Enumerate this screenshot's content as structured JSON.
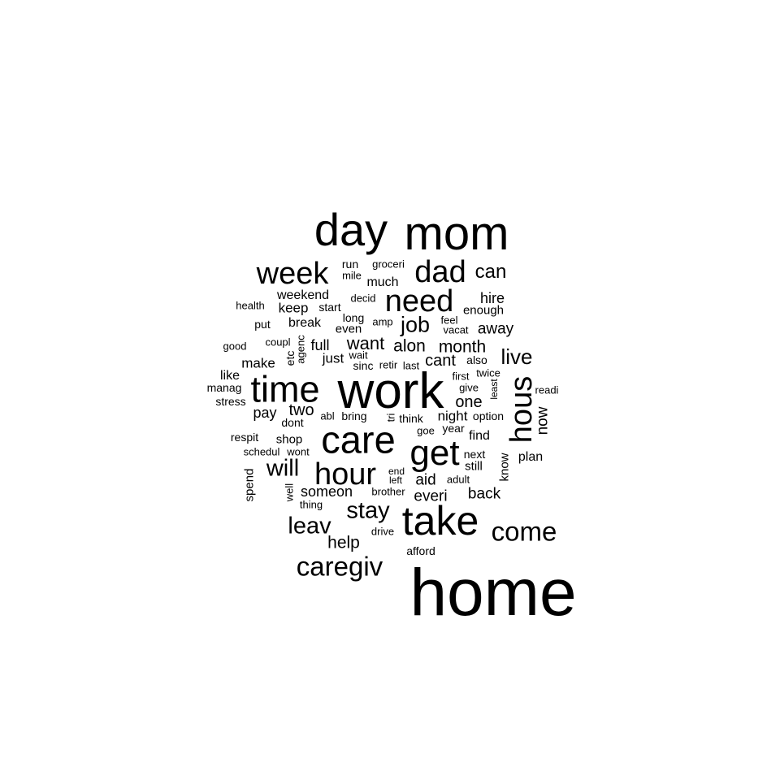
{
  "words": [
    {
      "id": "home",
      "text": "home"
    },
    {
      "id": "work",
      "text": "work"
    },
    {
      "id": "mom",
      "text": "mom"
    },
    {
      "id": "day",
      "text": "day"
    },
    {
      "id": "take",
      "text": "take"
    },
    {
      "id": "care",
      "text": "care"
    },
    {
      "id": "time",
      "text": "time"
    },
    {
      "id": "get",
      "text": "get"
    },
    {
      "id": "hour",
      "text": "hour"
    },
    {
      "id": "week",
      "text": "week"
    },
    {
      "id": "need",
      "text": "need"
    },
    {
      "id": "dad",
      "text": "dad"
    },
    {
      "id": "hous",
      "text": "hous"
    },
    {
      "id": "caregiv",
      "text": "caregiv"
    },
    {
      "id": "come",
      "text": "come"
    },
    {
      "id": "stay",
      "text": "stay"
    },
    {
      "id": "leav",
      "text": "leav"
    },
    {
      "id": "will",
      "text": "will"
    },
    {
      "id": "job",
      "text": "job"
    },
    {
      "id": "live",
      "text": "live"
    },
    {
      "id": "can",
      "text": "can"
    },
    {
      "id": "help",
      "text": "help"
    },
    {
      "id": "want",
      "text": "want"
    },
    {
      "id": "alon",
      "text": "alon"
    },
    {
      "id": "month",
      "text": "month"
    },
    {
      "id": "cant",
      "text": "cant"
    },
    {
      "id": "one",
      "text": "one"
    },
    {
      "id": "two",
      "text": "two"
    },
    {
      "id": "away",
      "text": "away"
    },
    {
      "id": "hire",
      "text": "hire"
    },
    {
      "id": "everi",
      "text": "everi"
    },
    {
      "id": "back",
      "text": "back"
    },
    {
      "id": "aid",
      "text": "aid"
    },
    {
      "id": "someon",
      "text": "someon"
    },
    {
      "id": "full",
      "text": "full"
    },
    {
      "id": "pay",
      "text": "pay"
    },
    {
      "id": "night",
      "text": "night"
    },
    {
      "id": "now",
      "text": "now"
    },
    {
      "id": "just",
      "text": "just"
    },
    {
      "id": "make",
      "text": "make"
    },
    {
      "id": "keep",
      "text": "keep"
    },
    {
      "id": "weekend",
      "text": "weekend"
    },
    {
      "id": "break",
      "text": "break"
    },
    {
      "id": "much",
      "text": "much"
    },
    {
      "id": "find",
      "text": "find"
    },
    {
      "id": "plan",
      "text": "plan"
    },
    {
      "id": "like",
      "text": "like"
    },
    {
      "id": "shop",
      "text": "shop"
    },
    {
      "id": "spend",
      "text": "spend"
    },
    {
      "id": "know",
      "text": "know"
    },
    {
      "id": "enough",
      "text": "enough"
    },
    {
      "id": "even",
      "text": "even"
    },
    {
      "id": "still",
      "text": "still"
    },
    {
      "id": "respit",
      "text": "respit"
    },
    {
      "id": "year",
      "text": "year"
    },
    {
      "id": "long",
      "text": "long"
    },
    {
      "id": "dont",
      "text": "dont"
    },
    {
      "id": "next",
      "text": "next"
    },
    {
      "id": "run",
      "text": "run"
    },
    {
      "id": "stress",
      "text": "stress"
    },
    {
      "id": "manag",
      "text": "manag"
    },
    {
      "id": "afford",
      "text": "afford"
    },
    {
      "id": "start",
      "text": "start"
    },
    {
      "id": "bring",
      "text": "bring"
    },
    {
      "id": "think",
      "text": "think"
    },
    {
      "id": "option",
      "text": "option"
    },
    {
      "id": "also",
      "text": "also"
    },
    {
      "id": "put",
      "text": "put"
    },
    {
      "id": "good",
      "text": "good"
    },
    {
      "id": "health",
      "text": "health"
    },
    {
      "id": "coupl",
      "text": "coupl"
    },
    {
      "id": "abl",
      "text": "abl"
    },
    {
      "id": "adult",
      "text": "adult"
    },
    {
      "id": "brother",
      "text": "brother"
    },
    {
      "id": "wont",
      "text": "wont"
    },
    {
      "id": "schedul",
      "text": "schedul"
    },
    {
      "id": "thing",
      "text": "thing"
    },
    {
      "id": "etc",
      "text": "etc"
    },
    {
      "id": "agenc",
      "text": "agenc"
    },
    {
      "id": "groceri",
      "text": "groceri"
    },
    {
      "id": "mile",
      "text": "mile"
    },
    {
      "id": "decid",
      "text": "decid"
    },
    {
      "id": "amp",
      "text": "amp"
    },
    {
      "id": "feel",
      "text": "feel"
    },
    {
      "id": "vacat",
      "text": "vacat"
    },
    {
      "id": "wait",
      "text": "wait"
    },
    {
      "id": "sinc",
      "text": "sinc"
    },
    {
      "id": "retir",
      "text": "retir"
    },
    {
      "id": "last",
      "text": "last"
    },
    {
      "id": "first",
      "text": "first"
    },
    {
      "id": "twice",
      "text": "twice"
    },
    {
      "id": "give",
      "text": "give"
    },
    {
      "id": "least",
      "text": "least"
    },
    {
      "id": "readi",
      "text": "readi"
    },
    {
      "id": "goe",
      "text": "goe"
    },
    {
      "id": "end",
      "text": "end"
    },
    {
      "id": "left",
      "text": "left"
    },
    {
      "id": "drive",
      "text": "drive"
    },
    {
      "id": "well",
      "text": "well"
    },
    {
      "id": "tri",
      "text": "tri"
    }
  ]
}
